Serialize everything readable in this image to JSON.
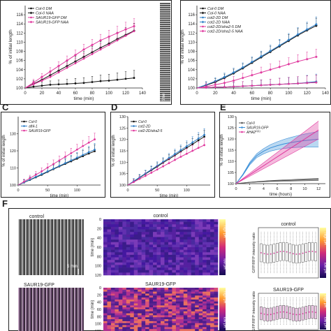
{
  "panel_labels": [
    "C",
    "D",
    "E",
    "F"
  ],
  "chart_data": [
    {
      "id": "A",
      "type": "line",
      "xlabel": "time (min)",
      "ylabel": "% of initial length",
      "xlim": [
        0,
        140
      ],
      "ylim": [
        100,
        118
      ],
      "xticks": [
        0,
        20,
        40,
        60,
        80,
        100,
        120,
        140
      ],
      "yticks": [
        100,
        102,
        104,
        106,
        108,
        110,
        112,
        114,
        116
      ],
      "legend": "top-left",
      "series": [
        {
          "name": "Col-0 DM",
          "color": "#111111",
          "marker": "circle",
          "x": [
            0,
            10,
            20,
            30,
            40,
            50,
            60,
            70,
            80,
            90,
            100,
            110,
            120,
            130
          ],
          "y": [
            100,
            100.3,
            100.5,
            100.7,
            100.8,
            100.9,
            101.0,
            101.1,
            101.3,
            101.5,
            101.6,
            101.8,
            102.0,
            102.2
          ]
        },
        {
          "name": "Col-0 NAA",
          "color": "#111111",
          "marker": "diamond",
          "x": [
            0,
            10,
            20,
            30,
            40,
            50,
            60,
            70,
            80,
            90,
            100,
            110,
            120,
            130
          ],
          "y": [
            100,
            100.9,
            101.8,
            102.8,
            103.8,
            104.8,
            105.8,
            106.8,
            107.8,
            108.8,
            109.7,
            110.7,
            111.6,
            112.5
          ]
        },
        {
          "name": "SAUR19-GFP DM",
          "color": "#e0399e",
          "marker": "circle",
          "x": [
            0,
            10,
            20,
            30,
            40,
            50,
            60,
            70,
            80,
            90,
            100,
            110,
            120,
            130
          ],
          "y": [
            100,
            100.8,
            101.6,
            102.4,
            103.4,
            104.4,
            105.4,
            106.4,
            107.4,
            108.4,
            109.4,
            110.4,
            111.4,
            112.4
          ]
        },
        {
          "name": "SAUR19-GFP NAA",
          "color": "#e0399e",
          "marker": "diamond",
          "x": [
            0,
            10,
            20,
            30,
            40,
            50,
            60,
            70,
            80,
            90,
            100,
            110,
            120,
            130
          ],
          "y": [
            100,
            101.2,
            102.4,
            103.6,
            104.8,
            106.0,
            107.2,
            108.4,
            109.4,
            110.4,
            111.2,
            112.0,
            112.8,
            113.5
          ]
        }
      ]
    },
    {
      "id": "B",
      "type": "line",
      "xlabel": "time (min)",
      "ylabel": "% of initial length",
      "xlim": [
        0,
        140
      ],
      "ylim": [
        100,
        118
      ],
      "xticks": [
        0,
        20,
        40,
        60,
        80,
        100,
        120,
        140
      ],
      "yticks": [
        100,
        102,
        104,
        106,
        108,
        110,
        112,
        114,
        116
      ],
      "legend": "top-left",
      "series": [
        {
          "name": "Col-0 DM",
          "color": "#111111",
          "marker": "circle",
          "x": [
            0,
            10,
            20,
            30,
            40,
            50,
            60,
            70,
            80,
            90,
            100,
            110,
            120,
            130
          ],
          "y": [
            100,
            100.1,
            100.2,
            100.2,
            100.3,
            100.4,
            100.5,
            100.6,
            100.7,
            100.8,
            100.9,
            101.0,
            101.1,
            101.2
          ]
        },
        {
          "name": "Col-0 NAA",
          "color": "#111111",
          "marker": "diamond",
          "x": [
            0,
            10,
            20,
            30,
            40,
            50,
            60,
            70,
            80,
            90,
            100,
            110,
            120,
            130
          ],
          "y": [
            100,
            100.6,
            101.3,
            102.2,
            103.2,
            104.3,
            105.5,
            106.7,
            107.9,
            109.1,
            110.3,
            111.5,
            112.6,
            113.6
          ]
        },
        {
          "name": "cot2-2D DM",
          "color": "#2f7fc8",
          "marker": "circle",
          "x": [
            0,
            10,
            20,
            30,
            40,
            50,
            60,
            70,
            80,
            90,
            100,
            110,
            120,
            130
          ],
          "y": [
            100,
            100.1,
            100.2,
            100.2,
            100.3,
            100.4,
            100.5,
            100.6,
            100.7,
            100.8,
            100.9,
            101.0,
            101.2,
            101.4
          ]
        },
        {
          "name": "cot2-2D NAA",
          "color": "#2f7fc8",
          "marker": "diamond",
          "x": [
            0,
            10,
            20,
            30,
            40,
            50,
            60,
            70,
            80,
            90,
            100,
            110,
            120,
            130
          ],
          "y": [
            100,
            100.7,
            101.5,
            102.4,
            103.4,
            104.5,
            105.7,
            106.9,
            108.1,
            109.3,
            110.5,
            111.7,
            112.8,
            113.9
          ]
        },
        {
          "name": "cot2-2D/aha2-5 DM",
          "color": "#e0399e",
          "marker": "circle",
          "x": [
            0,
            10,
            20,
            30,
            40,
            50,
            60,
            70,
            80,
            90,
            100,
            110,
            120,
            130
          ],
          "y": [
            100,
            100.1,
            100.2,
            100.2,
            100.3,
            100.4,
            100.5,
            100.6,
            100.7,
            100.8,
            100.9,
            101.0,
            101.1,
            101.2
          ]
        },
        {
          "name": "cot2-2D/aha2-5 NAA",
          "color": "#e0399e",
          "marker": "diamond",
          "x": [
            0,
            10,
            20,
            30,
            40,
            50,
            60,
            70,
            80,
            90,
            100,
            110,
            120,
            130
          ],
          "y": [
            100,
            100.3,
            100.7,
            101.1,
            101.6,
            102.2,
            102.8,
            103.4,
            104.0,
            104.6,
            105.2,
            105.8,
            106.3,
            106.8
          ]
        }
      ]
    },
    {
      "id": "C",
      "type": "line",
      "xlabel": "time (min)",
      "ylabel": "% of initial length",
      "xlim": [
        0,
        140
      ],
      "ylim": [
        100,
        140
      ],
      "xticks": [
        0,
        50,
        100
      ],
      "yticks": [
        100,
        110,
        120,
        130
      ],
      "legend": "top-left",
      "series": [
        {
          "name": "Col-0",
          "color": "#111111",
          "x": [
            0,
            10,
            20,
            30,
            40,
            50,
            60,
            70,
            80,
            90,
            100,
            110,
            120,
            130
          ],
          "y": [
            100,
            101.5,
            103,
            104.5,
            106,
            107.7,
            109.3,
            110.9,
            112.4,
            113.9,
            115.4,
            116.9,
            118.4,
            119.8
          ]
        },
        {
          "name": "aft4-1",
          "color": "#2f7fc8",
          "x": [
            0,
            10,
            20,
            30,
            40,
            50,
            60,
            70,
            80,
            90,
            100,
            110,
            120,
            130
          ],
          "y": [
            100,
            101.6,
            103.2,
            104.8,
            106.4,
            108.0,
            109.6,
            111.2,
            112.8,
            114.4,
            116.0,
            117.6,
            119.2,
            120.7
          ]
        },
        {
          "name": "SAUR19-GFP",
          "color": "#e0399e",
          "x": [
            0,
            10,
            20,
            30,
            40,
            50,
            60,
            70,
            80,
            90,
            100,
            110,
            120,
            130
          ],
          "y": [
            100,
            102,
            104,
            106,
            108,
            110.2,
            112.3,
            114.4,
            116.5,
            118.6,
            120.7,
            122.8,
            124.8,
            126.7
          ]
        }
      ]
    },
    {
      "id": "D",
      "type": "line",
      "xlabel": "time (min)",
      "ylabel": "% of initial length",
      "xlim": [
        0,
        140
      ],
      "ylim": [
        100,
        130
      ],
      "xticks": [
        0,
        50,
        100
      ],
      "yticks": [
        100,
        105,
        110,
        115,
        120,
        125,
        130
      ],
      "legend": "top-left",
      "series": [
        {
          "name": "Col-0",
          "color": "#111111",
          "x": [
            0,
            10,
            20,
            30,
            40,
            50,
            60,
            70,
            80,
            90,
            100,
            110,
            120,
            130
          ],
          "y": [
            100,
            101.6,
            103.2,
            104.9,
            106.5,
            108.1,
            109.8,
            111.4,
            113.0,
            114.7,
            116.3,
            117.9,
            119.6,
            121.2
          ]
        },
        {
          "name": "cot2-2D",
          "color": "#2f7fc8",
          "x": [
            0,
            10,
            20,
            30,
            40,
            50,
            60,
            70,
            80,
            90,
            100,
            110,
            120,
            130
          ],
          "y": [
            100,
            101.7,
            103.4,
            105.1,
            106.8,
            108.5,
            110.2,
            111.9,
            113.6,
            115.3,
            117.0,
            118.7,
            120.4,
            122.0
          ]
        },
        {
          "name": "cot2-2D/aha2-5",
          "color": "#e0399e",
          "x": [
            0,
            10,
            20,
            30,
            40,
            50,
            60,
            70,
            80,
            90,
            100,
            110,
            120,
            130
          ],
          "y": [
            100,
            101.3,
            102.7,
            104.0,
            105.4,
            106.8,
            108.2,
            109.6,
            111.0,
            112.4,
            113.7,
            115.0,
            116.3,
            117.5
          ]
        }
      ]
    },
    {
      "id": "E",
      "type": "line",
      "xlabel": "time (hours)",
      "ylabel": "% of initial length",
      "xlim": [
        0,
        13
      ],
      "ylim": [
        100,
        130
      ],
      "xticks": [
        0,
        2,
        4,
        6,
        8,
        10,
        12
      ],
      "yticks": [
        100,
        105,
        110,
        115,
        120,
        125,
        130
      ],
      "legend": "top-left",
      "series": [
        {
          "name": "Col-0",
          "color": "#555555",
          "x": [
            0,
            1,
            2,
            3,
            4,
            5,
            6,
            7,
            8,
            9,
            10,
            11,
            12
          ],
          "y": [
            100,
            100.3,
            100.6,
            100.8,
            101,
            101.2,
            101.3,
            101.4,
            101.5,
            101.6,
            101.7,
            101.8,
            101.9
          ],
          "band": 0.5
        },
        {
          "name": "SAUR19-GFP",
          "color": "#3a8fd8",
          "x": [
            0,
            1,
            2,
            3,
            4,
            5,
            6,
            7,
            8,
            9,
            10,
            11,
            12
          ],
          "y": [
            100,
            104,
            109,
            112.5,
            114.5,
            116,
            117,
            117.8,
            118.4,
            118.9,
            119.3,
            119.6,
            119.9
          ],
          "band": 3.5
        },
        {
          "name": "AHA2",
          "superscript": "D(1)",
          "color": "#e0399e",
          "x": [
            0,
            1,
            2,
            3,
            4,
            5,
            6,
            7,
            8,
            9,
            10,
            11,
            12
          ],
          "y": [
            100,
            102,
            104,
            106,
            108,
            110,
            112,
            114,
            116,
            118,
            120,
            122,
            124
          ],
          "band": 4
        }
      ]
    },
    {
      "id": "F-control",
      "type": "heatmap",
      "title": "control",
      "ylabel": "time (min)",
      "yticks": [
        0,
        20,
        40,
        60,
        80,
        100,
        120
      ],
      "colorbar": {
        "high": "high pH",
        "low": "low pH"
      }
    },
    {
      "id": "F-saur",
      "type": "heatmap",
      "title": "SAUR19-GFP",
      "ylabel": "time (min)",
      "yticks": [
        0,
        20,
        40,
        60,
        80,
        100,
        120
      ],
      "colorbar": {
        "high": "high pH",
        "low": "low pH"
      }
    },
    {
      "id": "F-control-box",
      "type": "box",
      "title": "control",
      "ylabel": "GFP/RFP intensity ratio",
      "colorbar": {
        "high": "high pH",
        "low": "low pH"
      }
    },
    {
      "id": "F-saur-box",
      "type": "box",
      "title": "SAUR19-GFP",
      "ylabel": "GFP/RFP intensity ratio",
      "colorbar": {
        "high": "high pH",
        "low": "low pH"
      }
    }
  ],
  "kymograph": {
    "top_label": "control",
    "bottom_label": "SAUR19-GFP",
    "scale_label": "5 min"
  },
  "panelA_image": {
    "axis_label": "time"
  }
}
